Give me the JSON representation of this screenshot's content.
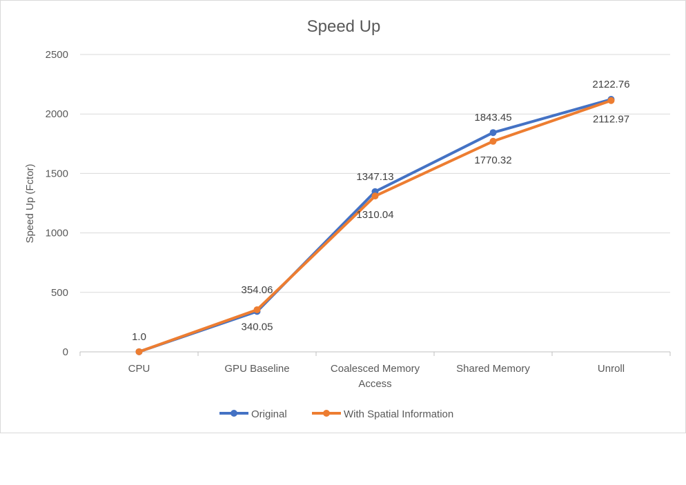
{
  "chart_data": {
    "type": "line",
    "title": "Speed Up",
    "xlabel": "",
    "ylabel": "Speed Up (Fctor)",
    "ylim": [
      0,
      2500
    ],
    "yticks": [
      0,
      500,
      1000,
      1500,
      2000,
      2500
    ],
    "grid": true,
    "legend_position": "bottom",
    "categories": [
      [
        "CPU"
      ],
      [
        "GPU Baseline"
      ],
      [
        "Coalesced Memory",
        "Access"
      ],
      [
        "Shared Memory"
      ],
      [
        "Unroll"
      ]
    ],
    "series": [
      {
        "name": "Original",
        "color": "#4472c4",
        "values": [
          1.0,
          340.05,
          1347.13,
          1843.45,
          2122.76
        ],
        "labels": [
          "1.0",
          "340.05",
          "1347.13",
          "1843.45",
          "2122.76"
        ]
      },
      {
        "name": "With Spatial Information",
        "color": "#ed7d31",
        "values": [
          1.0,
          354.06,
          1310.04,
          1770.32,
          2112.97
        ],
        "labels": [
          "",
          "354.06",
          "1310.04",
          "1770.32",
          "2112.97"
        ]
      }
    ]
  }
}
